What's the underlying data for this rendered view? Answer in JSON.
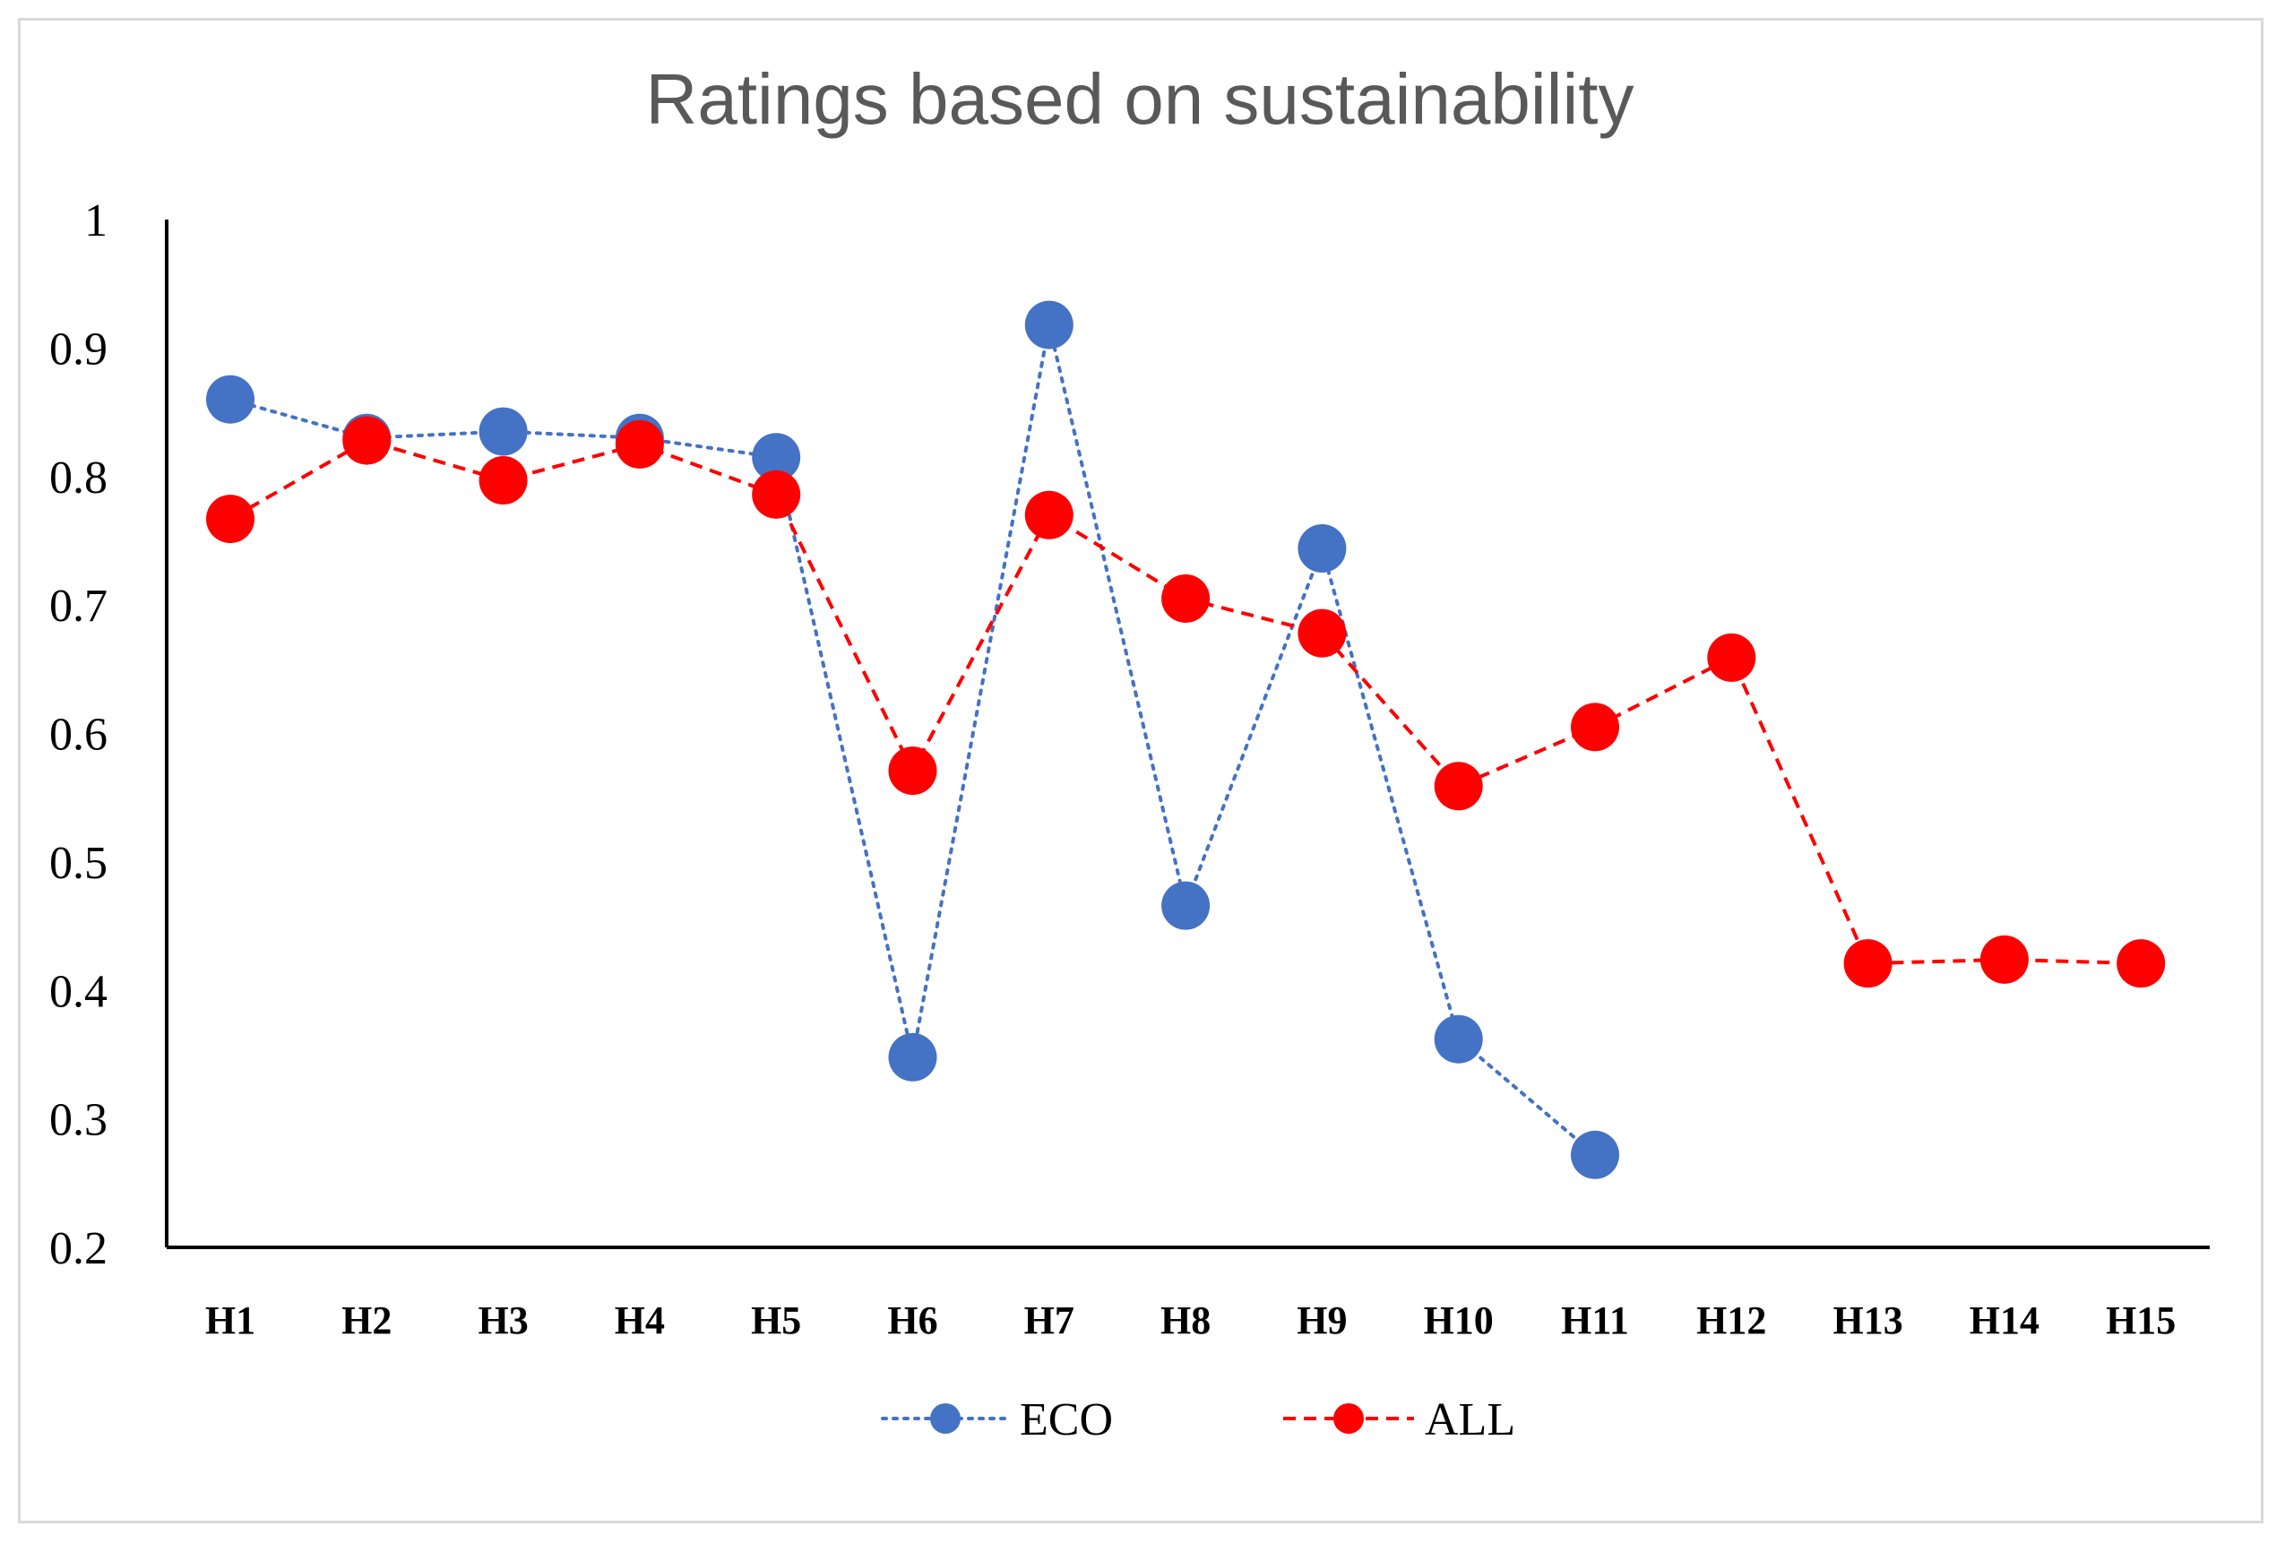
{
  "chart_data": {
    "type": "line",
    "title": "Ratings based on sustainability",
    "xlabel": "",
    "ylabel": "",
    "categories": [
      "H1",
      "H2",
      "H3",
      "H4",
      "H5",
      "H6",
      "H7",
      "H8",
      "H9",
      "H10",
      "H11",
      "H12",
      "H13",
      "H14",
      "H15"
    ],
    "ylim": [
      0.2,
      1
    ],
    "yticks": [
      0.2,
      0.3,
      0.4,
      0.5,
      0.6,
      0.7,
      0.8,
      0.9,
      1
    ],
    "ytick_labels": [
      "0.2",
      "0.3",
      "0.4",
      "0.5",
      "0.6",
      "0.7",
      "0.8",
      "0.9",
      "1"
    ],
    "grid": false,
    "legend_position": "bottom",
    "series": [
      {
        "name": "ECO",
        "color": "#4472c4",
        "line_style": "dotted",
        "values": [
          0.86,
          0.83,
          0.835,
          0.83,
          0.815,
          0.348,
          0.918,
          0.466,
          0.744,
          0.362,
          0.272,
          null,
          null,
          null,
          null
        ]
      },
      {
        "name": "ALL",
        "color": "#ff0000",
        "line_style": "dashed",
        "values": [
          0.767,
          0.828,
          0.797,
          0.825,
          0.786,
          0.571,
          0.77,
          0.705,
          0.678,
          0.559,
          0.605,
          0.659,
          0.421,
          0.424,
          0.421
        ]
      }
    ]
  }
}
